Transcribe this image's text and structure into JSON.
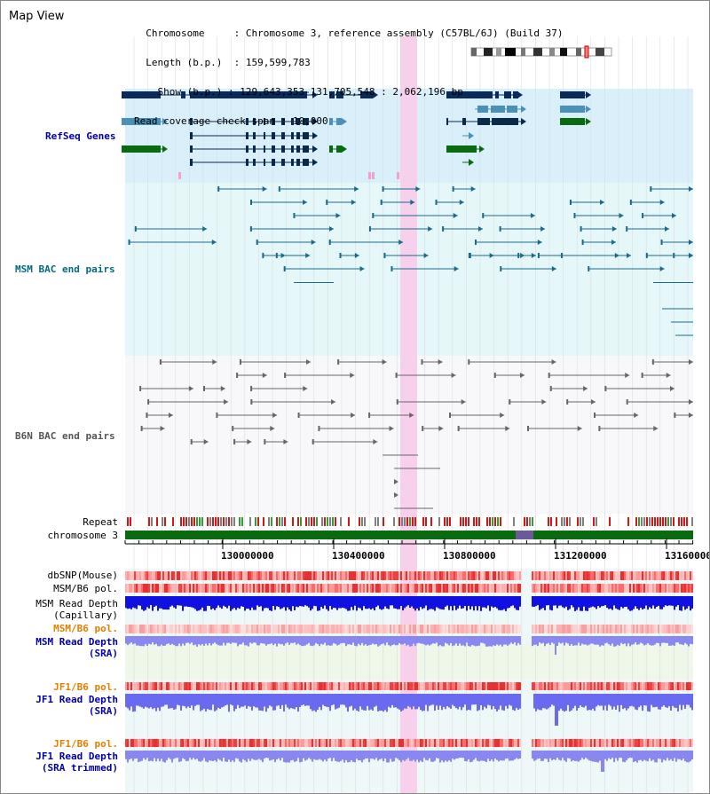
{
  "title": "Map View",
  "info": {
    "chromosome_key": "Chromosome",
    "chromosome_val": "Chromosome 3, reference assembly (C57BL/6J) (Build 37)",
    "length_key": "Length (b.p.)",
    "length_val": "159,599,783",
    "show_key": "Show (b.p.)",
    "show_val": "129,643,353-131,705,548 : 2,062,196 bp",
    "coverage_key": "Read coverage check span",
    "coverage_val": "10,000"
  },
  "tracks": {
    "refseq": "RefSeq Genes",
    "msm_bac": "MSM BAC end pairs",
    "b6n_bac": "B6N BAC end pairs",
    "repeat": "Repeat",
    "chromosome": "chromosome 3",
    "dbsnp": "dbSNP(Mouse)",
    "msm_b6_pol_1": "MSM/B6 pol.",
    "msm_read_depth_cap_1": "MSM Read Depth",
    "msm_read_depth_cap_2": "(Capillary)",
    "msm_b6_pol_2": "MSM/B6 pol.",
    "msm_read_depth_sra_1": "MSM Read Depth",
    "msm_read_depth_sra_2": "(SRA)",
    "jf1_b6_pol_1": "JF1/B6 pol.",
    "jf1_read_depth_sra_1": "JF1 Read Depth",
    "jf1_read_depth_sra_2": "(SRA)",
    "jf1_b6_pol_2": "JF1/B6 pol.",
    "jf1_read_depth_trim_1": "JF1 Read Depth",
    "jf1_read_depth_trim_2": "(SRA trimmed)"
  },
  "axis": {
    "ticks": [
      "130000000",
      "130400000",
      "130800000",
      "131200000",
      "131600000"
    ]
  },
  "colors": {
    "refseq_bg": "#d9f0fa",
    "msm_bg": "#e6f7f9",
    "b6n_bg": "#f8f8fb",
    "highlight": "#f7d0ec",
    "dark_blue": "#0a2a5c",
    "mid_blue": "#4a90b8",
    "green": "#0a6a10",
    "teal": "#1a6a8a",
    "gray": "#666666",
    "label_blue": "#0000aa",
    "label_teal": "#006a80",
    "label_gray": "#555555",
    "label_orange": "#e08000"
  }
}
